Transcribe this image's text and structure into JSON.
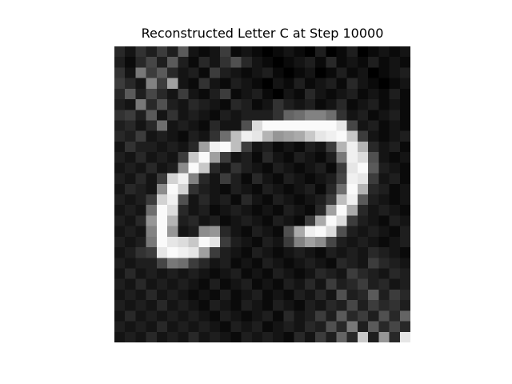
{
  "chart_data": {
    "type": "heatmap",
    "title": "Reconstructed Letter C at Step 10000",
    "colormap": "gray",
    "value_range": [
      0,
      255
    ],
    "axes_visible": false,
    "grid": false,
    "rows": 28,
    "cols": 28,
    "values": [
      [
        40,
        20,
        50,
        30,
        60,
        30,
        90,
        20,
        10,
        20,
        60,
        10,
        20,
        10,
        0,
        10,
        20,
        10,
        0,
        30,
        0,
        10,
        30,
        0,
        10,
        20,
        10,
        20
      ],
      [
        30,
        10,
        40,
        70,
        30,
        90,
        30,
        10,
        40,
        20,
        50,
        80,
        40,
        20,
        10,
        0,
        10,
        20,
        30,
        10,
        40,
        10,
        20,
        10,
        30,
        10,
        20,
        10
      ],
      [
        50,
        20,
        120,
        60,
        90,
        40,
        20,
        30,
        10,
        60,
        30,
        20,
        10,
        20,
        30,
        10,
        0,
        10,
        20,
        0,
        10,
        30,
        10,
        20,
        0,
        10,
        20,
        30
      ],
      [
        60,
        40,
        20,
        130,
        60,
        160,
        20,
        10,
        50,
        20,
        10,
        30,
        20,
        10,
        0,
        20,
        10,
        30,
        10,
        20,
        30,
        10,
        40,
        20,
        10,
        0,
        10,
        20
      ],
      [
        40,
        90,
        30,
        70,
        40,
        20,
        60,
        20,
        10,
        30,
        60,
        10,
        20,
        30,
        10,
        0,
        20,
        10,
        40,
        20,
        10,
        20,
        30,
        10,
        20,
        10,
        30,
        10
      ],
      [
        30,
        20,
        120,
        40,
        80,
        30,
        20,
        40,
        30,
        20,
        10,
        40,
        30,
        10,
        20,
        50,
        30,
        20,
        30,
        10,
        20,
        40,
        10,
        20,
        30,
        10,
        20,
        10
      ],
      [
        50,
        60,
        30,
        90,
        20,
        50,
        20,
        30,
        20,
        10,
        30,
        20,
        30,
        30,
        30,
        50,
        100,
        110,
        130,
        130,
        110,
        50,
        20,
        30,
        10,
        20,
        30,
        10
      ],
      [
        30,
        40,
        20,
        40,
        110,
        20,
        30,
        20,
        10,
        40,
        20,
        20,
        80,
        220,
        250,
        250,
        250,
        250,
        250,
        250,
        250,
        230,
        70,
        20,
        30,
        10,
        20,
        10
      ],
      [
        40,
        30,
        60,
        20,
        30,
        20,
        10,
        30,
        20,
        50,
        110,
        190,
        240,
        230,
        180,
        150,
        160,
        170,
        200,
        230,
        240,
        250,
        200,
        60,
        20,
        10,
        20,
        30
      ],
      [
        20,
        50,
        30,
        30,
        20,
        30,
        20,
        40,
        160,
        240,
        250,
        190,
        60,
        20,
        30,
        10,
        20,
        10,
        30,
        20,
        60,
        180,
        240,
        180,
        40,
        20,
        30,
        10
      ],
      [
        30,
        20,
        40,
        20,
        30,
        20,
        60,
        200,
        250,
        160,
        60,
        20,
        30,
        10,
        40,
        20,
        10,
        30,
        20,
        10,
        30,
        120,
        240,
        220,
        80,
        20,
        10,
        20
      ],
      [
        20,
        30,
        20,
        40,
        20,
        30,
        140,
        250,
        200,
        40,
        20,
        50,
        30,
        20,
        10,
        30,
        20,
        10,
        20,
        30,
        10,
        60,
        230,
        250,
        90,
        30,
        20,
        10
      ],
      [
        30,
        20,
        40,
        20,
        60,
        210,
        240,
        130,
        40,
        20,
        60,
        30,
        10,
        40,
        20,
        10,
        30,
        20,
        10,
        20,
        30,
        70,
        240,
        230,
        60,
        20,
        30,
        10
      ],
      [
        20,
        40,
        30,
        20,
        140,
        250,
        210,
        50,
        30,
        20,
        10,
        30,
        20,
        10,
        30,
        20,
        10,
        20,
        30,
        10,
        40,
        110,
        250,
        180,
        40,
        30,
        10,
        20
      ],
      [
        30,
        20,
        30,
        60,
        210,
        240,
        80,
        20,
        40,
        20,
        30,
        10,
        40,
        20,
        10,
        30,
        20,
        10,
        20,
        30,
        60,
        190,
        240,
        90,
        30,
        20,
        10,
        20
      ],
      [
        20,
        30,
        20,
        110,
        250,
        220,
        40,
        20,
        30,
        10,
        20,
        30,
        20,
        10,
        20,
        10,
        30,
        20,
        10,
        40,
        160,
        250,
        170,
        40,
        20,
        30,
        20,
        10
      ],
      [
        30,
        20,
        40,
        150,
        250,
        180,
        30,
        40,
        20,
        30,
        10,
        20,
        30,
        20,
        10,
        30,
        20,
        10,
        60,
        170,
        250,
        220,
        60,
        30,
        20,
        10,
        30,
        20
      ],
      [
        20,
        30,
        20,
        130,
        250,
        150,
        20,
        30,
        140,
        150,
        40,
        20,
        10,
        30,
        20,
        10,
        80,
        170,
        240,
        250,
        220,
        80,
        30,
        20,
        30,
        20,
        10,
        30
      ],
      [
        30,
        20,
        30,
        120,
        250,
        230,
        220,
        200,
        250,
        230,
        60,
        30,
        20,
        10,
        30,
        20,
        60,
        130,
        160,
        140,
        70,
        30,
        20,
        30,
        20,
        10,
        20,
        30
      ],
      [
        20,
        30,
        50,
        60,
        230,
        250,
        240,
        230,
        160,
        60,
        30,
        20,
        10,
        30,
        20,
        10,
        20,
        30,
        20,
        10,
        30,
        20,
        30,
        20,
        40,
        30,
        20,
        10
      ],
      [
        30,
        20,
        30,
        30,
        70,
        120,
        110,
        60,
        40,
        20,
        30,
        10,
        20,
        10,
        30,
        20,
        10,
        20,
        30,
        20,
        10,
        40,
        30,
        20,
        60,
        40,
        30,
        20
      ],
      [
        20,
        40,
        20,
        30,
        20,
        30,
        20,
        30,
        20,
        10,
        20,
        30,
        10,
        20,
        10,
        30,
        20,
        10,
        20,
        40,
        30,
        20,
        60,
        40,
        30,
        20,
        40,
        30
      ],
      [
        30,
        20,
        40,
        20,
        30,
        20,
        30,
        20,
        10,
        30,
        10,
        20,
        30,
        10,
        20,
        10,
        30,
        20,
        40,
        20,
        60,
        30,
        40,
        60,
        30,
        40,
        20,
        30
      ],
      [
        20,
        30,
        20,
        40,
        20,
        30,
        20,
        10,
        20,
        10,
        30,
        10,
        20,
        30,
        10,
        20,
        10,
        30,
        20,
        40,
        20,
        80,
        30,
        40,
        90,
        30,
        60,
        40
      ],
      [
        30,
        20,
        30,
        20,
        40,
        20,
        30,
        20,
        10,
        30,
        20,
        10,
        30,
        20,
        10,
        30,
        20,
        10,
        30,
        20,
        40,
        30,
        70,
        30,
        60,
        40,
        50,
        30
      ],
      [
        20,
        40,
        20,
        30,
        20,
        30,
        20,
        30,
        20,
        10,
        30,
        20,
        10,
        20,
        30,
        10,
        40,
        20,
        30,
        60,
        30,
        90,
        40,
        60,
        30,
        80,
        40,
        100
      ],
      [
        30,
        20,
        30,
        20,
        40,
        20,
        30,
        20,
        30,
        20,
        10,
        30,
        20,
        30,
        10,
        20,
        30,
        20,
        40,
        30,
        80,
        40,
        120,
        30,
        90,
        40,
        70,
        40
      ],
      [
        20,
        30,
        20,
        40,
        20,
        30,
        20,
        40,
        20,
        30,
        20,
        10,
        30,
        20,
        30,
        20,
        10,
        40,
        20,
        60,
        30,
        100,
        40,
        200,
        30,
        150,
        40,
        230
      ]
    ]
  }
}
